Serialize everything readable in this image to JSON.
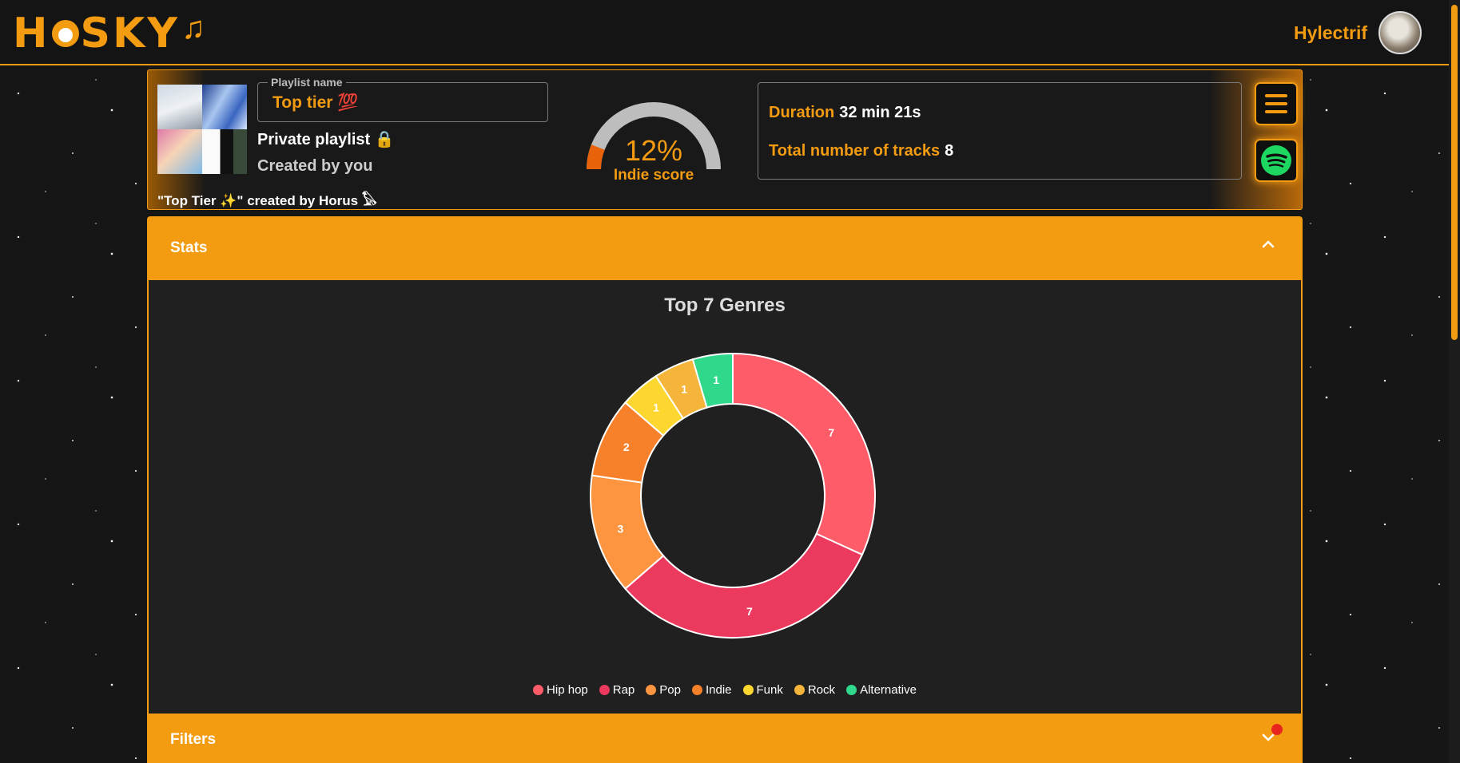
{
  "app": {
    "logo_text_left": "H",
    "logo_text_right": "SKY",
    "logo_note": "♫"
  },
  "user": {
    "name": "Hylectrif"
  },
  "playlist": {
    "name_label": "Playlist name",
    "name": "Top tier 💯",
    "privacy": "Private playlist 🔒",
    "created_by": "Created by you",
    "description": "\"Top Tier ✨\" created by Horus 𓅃"
  },
  "indie": {
    "percent_text": "12%",
    "percent": 12,
    "label": "Indie score"
  },
  "info": {
    "duration_label": "Duration",
    "duration_value": "32 min 21s",
    "tracks_label": "Total number of tracks",
    "tracks_value": "8"
  },
  "icons": {
    "menu": "hamburger-icon",
    "spotify": "spotify-icon",
    "chevron_up": "chevron-up-icon",
    "chevron_down": "chevron-down-icon"
  },
  "sections": {
    "stats_title": "Stats",
    "filters_title": "Filters"
  },
  "colors": {
    "accent": "#f39c12",
    "notif": "#e8251f"
  },
  "chart_data": {
    "type": "pie",
    "title": "Top 7 Genres",
    "categories": [
      "Hip hop",
      "Rap",
      "Pop",
      "Indie",
      "Funk",
      "Rock",
      "Alternative"
    ],
    "values": [
      7,
      7,
      3,
      2,
      1,
      1,
      1
    ],
    "colors": [
      "#ff5c6a",
      "#ec3a5e",
      "#fd9540",
      "#f7802b",
      "#fdd630",
      "#f5b43a",
      "#2fd88a"
    ],
    "donut": true,
    "legend_position": "bottom"
  }
}
